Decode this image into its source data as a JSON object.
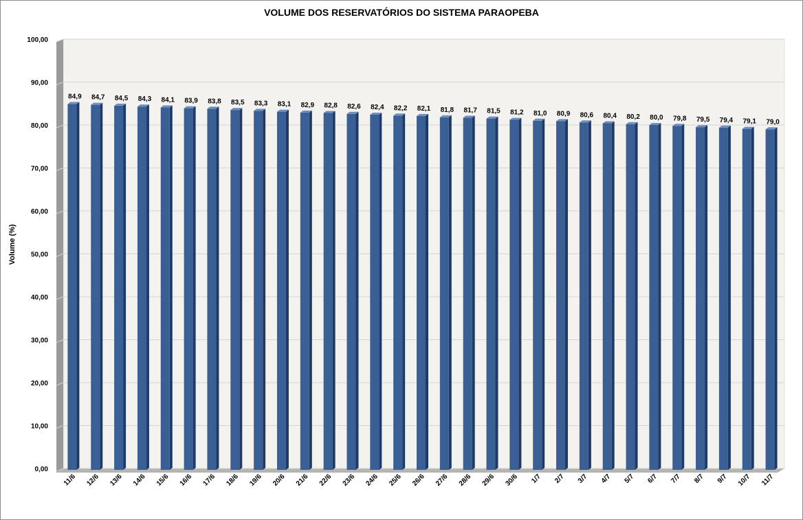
{
  "chart_data": {
    "type": "bar",
    "title": "VOLUME DOS RESERVATÓRIOS DO SISTEMA PARAOPEBA",
    "xlabel": "",
    "ylabel": "Volume (%)",
    "ylim": [
      0,
      100
    ],
    "yticks": [
      "0,00",
      "10,00",
      "20,00",
      "30,00",
      "40,00",
      "50,00",
      "60,00",
      "70,00",
      "80,00",
      "90,00",
      "100,00"
    ],
    "grid": true,
    "legend": "none",
    "bar_color": "#3a5f94",
    "categories": [
      "11/6",
      "12/6",
      "13/6",
      "14/6",
      "15/6",
      "16/6",
      "17/6",
      "18/6",
      "19/6",
      "20/6",
      "21/6",
      "22/6",
      "23/6",
      "24/6",
      "25/6",
      "26/6",
      "27/6",
      "28/6",
      "29/6",
      "30/6",
      "1/7",
      "2/7",
      "3/7",
      "4/7",
      "5/7",
      "6/7",
      "7/7",
      "8/7",
      "9/7",
      "10/7",
      "11/7"
    ],
    "values": [
      84.9,
      84.7,
      84.5,
      84.3,
      84.1,
      83.9,
      83.8,
      83.5,
      83.3,
      83.1,
      82.9,
      82.8,
      82.6,
      82.4,
      82.2,
      82.1,
      81.8,
      81.7,
      81.5,
      81.2,
      81.0,
      80.9,
      80.6,
      80.4,
      80.2,
      80.0,
      79.8,
      79.5,
      79.4,
      79.1,
      79.0
    ],
    "value_labels": [
      "84,9",
      "84,7",
      "84,5",
      "84,3",
      "84,1",
      "83,9",
      "83,8",
      "83,5",
      "83,3",
      "83,1",
      "82,9",
      "82,8",
      "82,6",
      "82,4",
      "82,2",
      "82,1",
      "81,8",
      "81,7",
      "81,5",
      "81,2",
      "81,0",
      "80,9",
      "80,6",
      "80,4",
      "80,2",
      "80,0",
      "79,8",
      "79,5",
      "79,4",
      "79,1",
      "79,0"
    ]
  }
}
